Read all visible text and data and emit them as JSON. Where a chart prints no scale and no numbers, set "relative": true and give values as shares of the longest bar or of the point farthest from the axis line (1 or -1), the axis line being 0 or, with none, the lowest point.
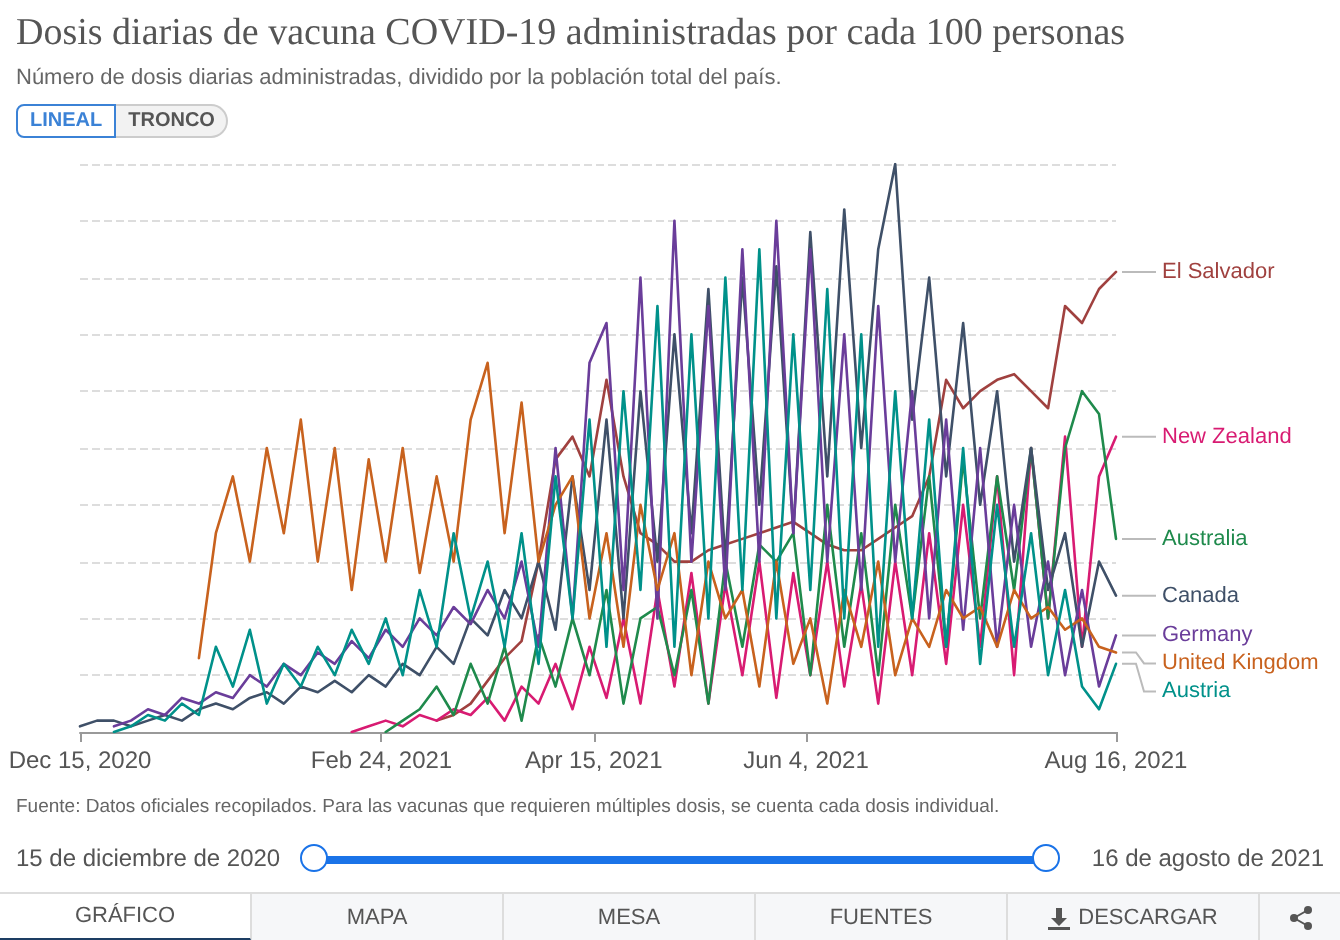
{
  "chart_data": {
    "type": "line",
    "title": "Dosis diarias de vacuna COVID-19 administradas por cada 100 personas",
    "subtitle": "Número de dosis diarias administradas, dividido por la población total del país.",
    "annotations": [
      "Fuente: Datos oficiales recopilados. Para las vacunas que requieren múltiples dosis, se cuenta cada dosis individual.",
      "15 de diciembre de 2020",
      "16 de agosto de 2021",
      "LINEAL",
      "TRONCO",
      "GRÁFICO",
      "MAPA",
      "MESA",
      "FUENTES",
      "DESCARGAR"
    ],
    "relative": true,
    "grid": "y",
    "marker": "none",
    "line_style": "solid",
    "xlim": [
      "2020-12-15",
      "2021-08-16"
    ],
    "xticks": [
      {
        "value": "2020-12-15",
        "label": "Dec 15, 2020"
      },
      {
        "value": "2021-02-24",
        "label": "Feb 24, 2021"
      },
      {
        "value": "2021-04-15",
        "label": "Apr 15, 2021"
      },
      {
        "value": "2021-06-04",
        "label": "Jun 4, 2021"
      },
      {
        "value": "2021-08-16",
        "label": "Aug 16, 2021"
      }
    ],
    "x": [
      "2020-12-15",
      "2020-12-19",
      "2020-12-23",
      "2020-12-27",
      "2020-12-31",
      "2021-01-04",
      "2021-01-08",
      "2021-01-12",
      "2021-01-16",
      "2021-01-20",
      "2021-01-24",
      "2021-01-28",
      "2021-02-01",
      "2021-02-05",
      "2021-02-09",
      "2021-02-13",
      "2021-02-17",
      "2021-02-21",
      "2021-02-25",
      "2021-03-01",
      "2021-03-05",
      "2021-03-09",
      "2021-03-13",
      "2021-03-17",
      "2021-03-21",
      "2021-03-25",
      "2021-03-29",
      "2021-04-02",
      "2021-04-06",
      "2021-04-10",
      "2021-04-14",
      "2021-04-18",
      "2021-04-22",
      "2021-04-26",
      "2021-04-30",
      "2021-05-04",
      "2021-05-08",
      "2021-05-12",
      "2021-05-16",
      "2021-05-20",
      "2021-05-24",
      "2021-05-28",
      "2021-06-01",
      "2021-06-05",
      "2021-06-09",
      "2021-06-13",
      "2021-06-17",
      "2021-06-21",
      "2021-06-25",
      "2021-06-29",
      "2021-07-03",
      "2021-07-07",
      "2021-07-11",
      "2021-07-15",
      "2021-07-19",
      "2021-07-23",
      "2021-07-27",
      "2021-07-31",
      "2021-08-04",
      "2021-08-08",
      "2021-08-12",
      "2021-08-16"
    ],
    "series": [
      {
        "name": "El Salvador",
        "color": "#a0413f",
        "values": [
          null,
          null,
          null,
          null,
          null,
          null,
          null,
          null,
          null,
          null,
          null,
          null,
          null,
          null,
          null,
          null,
          null,
          null,
          null,
          null,
          null,
          0.02,
          0.03,
          0.05,
          0.09,
          0.13,
          0.16,
          0.3,
          0.48,
          0.52,
          0.45,
          0.62,
          0.45,
          0.35,
          0.33,
          0.3,
          0.3,
          0.32,
          0.33,
          0.34,
          0.35,
          0.36,
          0.37,
          0.35,
          0.33,
          0.32,
          0.32,
          0.34,
          0.36,
          0.38,
          0.45,
          0.62,
          0.57,
          0.6,
          0.62,
          0.63,
          0.6,
          0.57,
          0.75,
          0.72,
          0.78,
          0.81
        ]
      },
      {
        "name": "New Zealand",
        "color": "#d81b72",
        "values": [
          null,
          null,
          null,
          null,
          null,
          null,
          null,
          null,
          null,
          null,
          null,
          null,
          null,
          null,
          null,
          null,
          0,
          0.01,
          0.02,
          0.01,
          0.03,
          0.02,
          0.04,
          0.03,
          0.06,
          0.02,
          0.08,
          0.05,
          0.12,
          0.04,
          0.15,
          0.06,
          0.2,
          0.05,
          0.25,
          0.08,
          0.28,
          0.05,
          0.26,
          0.1,
          0.3,
          0.06,
          0.28,
          0.1,
          0.3,
          0.08,
          0.26,
          0.05,
          0.3,
          0.1,
          0.35,
          0.12,
          0.4,
          0.15,
          0.45,
          0.1,
          0.5,
          0.2,
          0.52,
          0.15,
          0.45,
          0.52
        ]
      },
      {
        "name": "Australia",
        "color": "#1f8a4c",
        "values": [
          null,
          null,
          null,
          null,
          null,
          null,
          null,
          null,
          null,
          null,
          null,
          null,
          null,
          null,
          null,
          null,
          null,
          null,
          0,
          0.02,
          0.04,
          0.08,
          0.03,
          0.12,
          0.05,
          0.15,
          0.02,
          0.17,
          0.08,
          0.2,
          0.1,
          0.25,
          0.05,
          0.2,
          0.22,
          0.1,
          0.25,
          0.05,
          0.3,
          0.15,
          0.33,
          0.3,
          0.35,
          0.1,
          0.4,
          0.15,
          0.35,
          0.1,
          0.4,
          0.2,
          0.45,
          0.15,
          0.48,
          0.2,
          0.45,
          0.25,
          0.5,
          0.2,
          0.5,
          0.6,
          0.56,
          0.34
        ]
      },
      {
        "name": "Canada",
        "color": "#3f5068",
        "values": [
          0.01,
          0.02,
          0.02,
          0.01,
          0.02,
          0.03,
          0.02,
          0.04,
          0.05,
          0.04,
          0.06,
          0.07,
          0.05,
          0.08,
          0.07,
          0.09,
          0.07,
          0.1,
          0.08,
          0.12,
          0.1,
          0.15,
          0.12,
          0.2,
          0.17,
          0.25,
          0.2,
          0.3,
          0.18,
          0.45,
          0.25,
          0.55,
          0.2,
          0.6,
          0.3,
          0.7,
          0.35,
          0.78,
          0.3,
          0.8,
          0.4,
          0.82,
          0.35,
          0.88,
          0.45,
          0.92,
          0.5,
          0.85,
          1,
          0.55,
          0.8,
          0.45,
          0.72,
          0.4,
          0.6,
          0.3,
          0.5,
          0.25,
          0.35,
          0.15,
          0.3,
          0.24
        ]
      },
      {
        "name": "Germany",
        "color": "#6a3d9a",
        "values": [
          null,
          null,
          0.01,
          0.02,
          0.04,
          0.03,
          0.06,
          0.05,
          0.07,
          0.06,
          0.1,
          0.08,
          0.12,
          0.1,
          0.14,
          0.12,
          0.16,
          0.13,
          0.18,
          0.15,
          0.2,
          0.17,
          0.22,
          0.19,
          0.25,
          0.2,
          0.3,
          0.15,
          0.5,
          0.2,
          0.65,
          0.72,
          0.25,
          0.8,
          0.2,
          0.9,
          0.3,
          0.75,
          0.25,
          0.85,
          0.3,
          0.9,
          0.35,
          0.85,
          0.3,
          0.7,
          0.25,
          0.75,
          0.3,
          0.6,
          0.2,
          0.55,
          0.18,
          0.5,
          0.15,
          0.4,
          0.15,
          0.3,
          0.1,
          0.25,
          0.08,
          0.17
        ]
      },
      {
        "name": "United Kingdom",
        "color": "#c8621e",
        "values": [
          null,
          null,
          null,
          null,
          null,
          null,
          null,
          0.13,
          0.35,
          0.45,
          0.3,
          0.5,
          0.35,
          0.55,
          0.3,
          0.5,
          0.25,
          0.48,
          0.3,
          0.5,
          0.28,
          0.45,
          0.3,
          0.55,
          0.65,
          0.35,
          0.58,
          0.3,
          0.4,
          0.45,
          0.2,
          0.35,
          0.15,
          0.4,
          0.25,
          0.35,
          0.1,
          0.3,
          0.2,
          0.25,
          0.08,
          0.3,
          0.12,
          0.2,
          0.05,
          0.25,
          0.15,
          0.3,
          0.1,
          0.2,
          0.15,
          0.25,
          0.2,
          0.22,
          0.15,
          0.25,
          0.2,
          0.22,
          0.18,
          0.2,
          0.15,
          0.14
        ]
      },
      {
        "name": "Austria",
        "color": "#00918a",
        "values": [
          null,
          null,
          0,
          0.01,
          0.03,
          0.02,
          0.05,
          0.03,
          0.15,
          0.08,
          0.18,
          0.05,
          0.12,
          0.08,
          0.15,
          0.1,
          0.18,
          0.12,
          0.2,
          0.1,
          0.25,
          0.15,
          0.35,
          0.2,
          0.3,
          0.15,
          0.35,
          0.12,
          0.45,
          0.2,
          0.55,
          0.15,
          0.6,
          0.25,
          0.75,
          0.15,
          0.7,
          0.2,
          0.8,
          0.25,
          0.85,
          0.2,
          0.7,
          0.25,
          0.78,
          0.2,
          0.7,
          0.15,
          0.6,
          0.2,
          0.55,
          0.15,
          0.5,
          0.12,
          0.4,
          0.15,
          0.35,
          0.1,
          0.25,
          0.08,
          0.04,
          0.12
        ]
      }
    ]
  }
}
